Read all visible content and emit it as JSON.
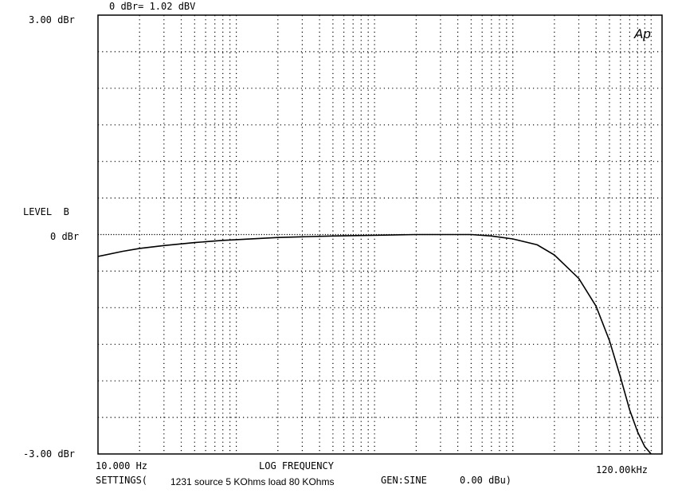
{
  "header": {
    "reference": "0 dBr= 1.02 dBV"
  },
  "logo": "Ap",
  "footer": {
    "settings_prefix": "SETTINGS(",
    "settings_text": "1231 source 5 KOhms load 80 KOhms",
    "gen_label": "GEN:SINE",
    "gen_value": "0.00 dBu)"
  },
  "chart_data": {
    "type": "line",
    "ylabel": "LEVEL  B",
    "xlabel": "LOG FREQUENCY",
    "x_scale": "log",
    "xlim": [
      10,
      120000
    ],
    "ylim": [
      -3,
      3
    ],
    "y_tick_labels": {
      "top": "3.00 dBr",
      "mid": "0 dBr",
      "bottom": "-3.00 dBr"
    },
    "x_tick_labels": {
      "left": "10.000 Hz",
      "right": "120.00kHz"
    },
    "grid": "dotted",
    "reference_line_y": 0,
    "series": [
      {
        "x": [
          10,
          15,
          20,
          30,
          50,
          80,
          100,
          200,
          300,
          500,
          1000,
          2000,
          3000,
          5000,
          7000,
          10000,
          15000,
          20000,
          30000,
          40000,
          50000,
          60000,
          70000,
          80000,
          90000,
          100000
        ],
        "y": [
          -0.3,
          -0.23,
          -0.19,
          -0.15,
          -0.11,
          -0.08,
          -0.07,
          -0.04,
          -0.03,
          -0.02,
          -0.01,
          0.0,
          0.0,
          0.0,
          -0.02,
          -0.06,
          -0.14,
          -0.28,
          -0.6,
          -0.98,
          -1.45,
          -1.95,
          -2.4,
          -2.7,
          -2.9,
          -3.0
        ]
      }
    ]
  }
}
